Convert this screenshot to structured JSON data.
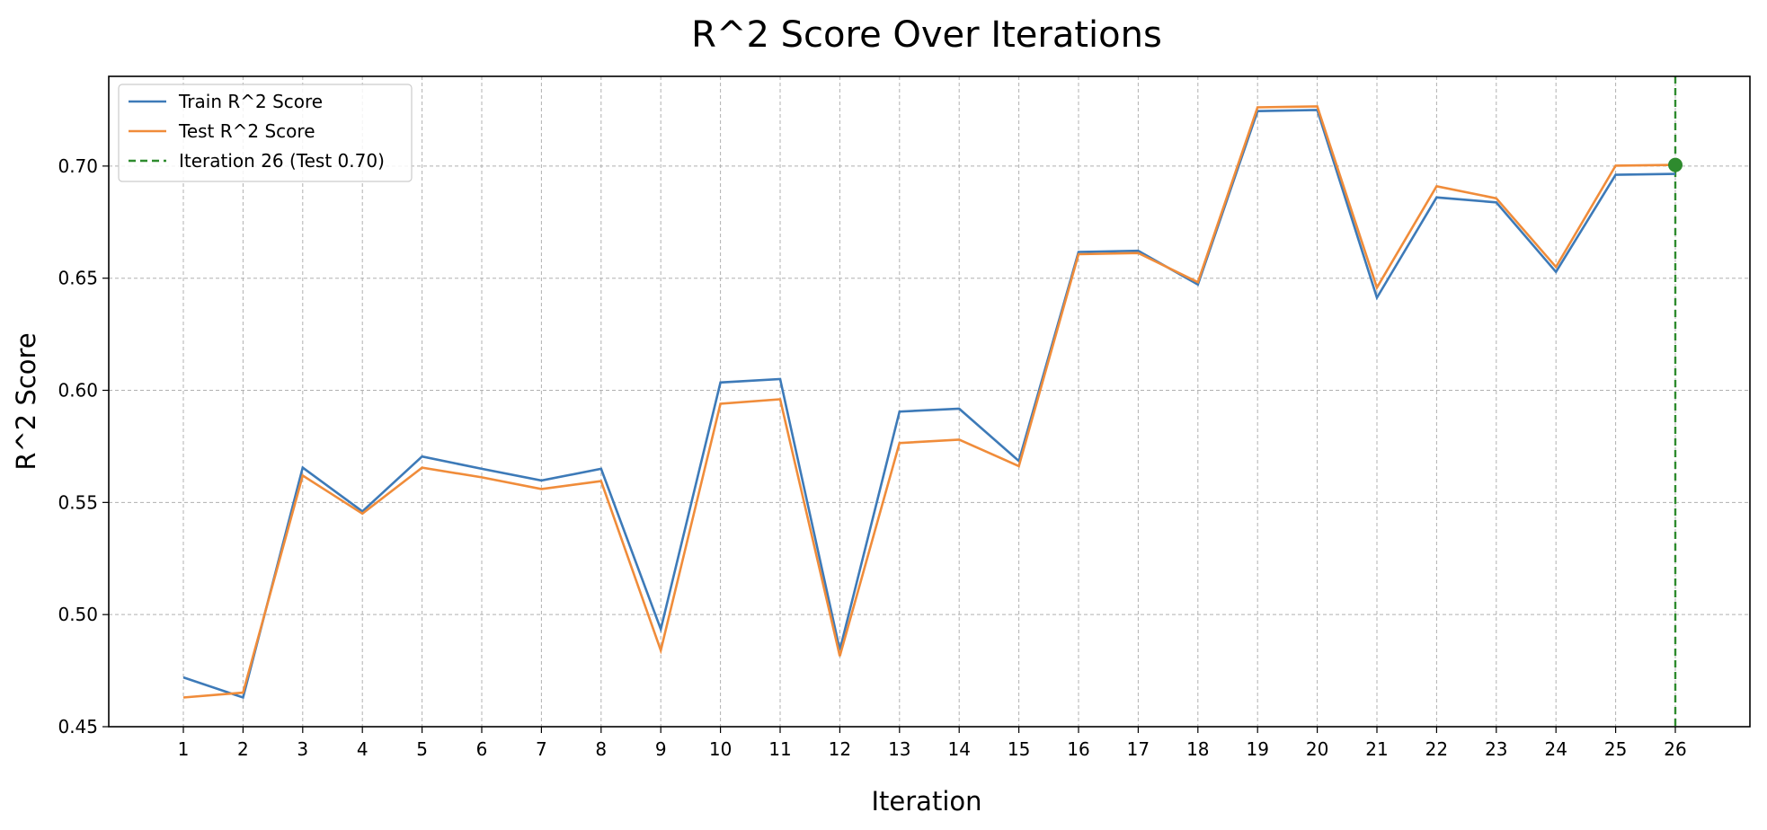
{
  "chart_data": {
    "type": "line",
    "title": "R^2 Score Over Iterations",
    "xlabel": "Iteration",
    "ylabel": "R^2 Score",
    "x": [
      1,
      2,
      3,
      4,
      5,
      6,
      7,
      8,
      9,
      10,
      11,
      12,
      13,
      14,
      15,
      16,
      17,
      18,
      19,
      20,
      21,
      22,
      23,
      24,
      25,
      26
    ],
    "xlim": [
      -0.25,
      27.25
    ],
    "ylim": [
      0.45,
      0.74
    ],
    "yticks": [
      0.45,
      0.5,
      0.55,
      0.6,
      0.65,
      0.7
    ],
    "ytick_labels": [
      "0.45",
      "0.50",
      "0.55",
      "0.60",
      "0.65",
      "0.70"
    ],
    "grid": true,
    "legend_position": "top-left",
    "series": [
      {
        "name": "Train R^2 Score",
        "color": "#3d7ab8",
        "values": [
          0.472,
          0.463,
          0.5655,
          0.546,
          0.5705,
          0.565,
          0.5598,
          0.565,
          0.4935,
          0.6035,
          0.605,
          0.4842,
          0.5905,
          0.5918,
          0.5685,
          0.6617,
          0.6622,
          0.6472,
          0.7245,
          0.725,
          0.6413,
          0.686,
          0.6838,
          0.6528,
          0.6961,
          0.6965
        ]
      },
      {
        "name": "Test R^2 Score",
        "color": "#f08c3a",
        "values": [
          0.463,
          0.4652,
          0.562,
          0.545,
          0.5655,
          0.5612,
          0.556,
          0.5595,
          0.484,
          0.594,
          0.596,
          0.4815,
          0.5765,
          0.578,
          0.5662,
          0.6607,
          0.6612,
          0.6482,
          0.7262,
          0.7266,
          0.6458,
          0.691,
          0.6856,
          0.655,
          0.7002,
          0.7005
        ]
      }
    ],
    "marker": {
      "name": "Iteration 26 (Test 0.70)",
      "x": 26,
      "y": 0.7005,
      "color": "#2e8b2e"
    }
  }
}
